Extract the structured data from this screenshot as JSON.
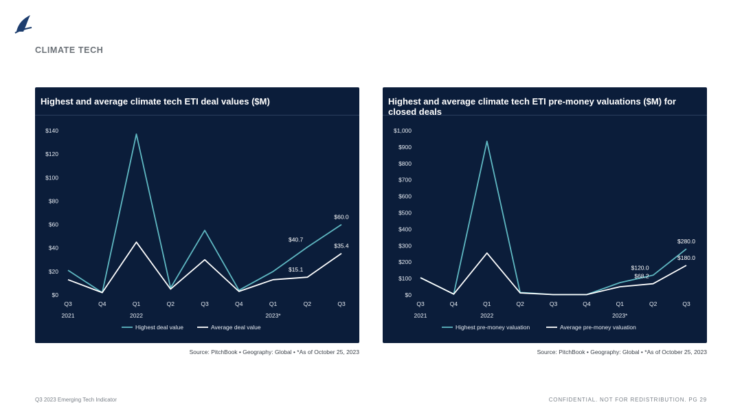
{
  "header": {
    "section_title": "CLIMATE TECH"
  },
  "colors": {
    "highest": "#5fb8c2",
    "average": "#ffffff",
    "panel_bg": "#0b1d3a",
    "axis_text": "#e6ebf2"
  },
  "chart_data": [
    {
      "type": "line",
      "title": "Highest and average climate tech ETI deal values ($M)",
      "categories": [
        "Q3",
        "Q4",
        "Q1",
        "Q2",
        "Q3",
        "Q4",
        "Q1",
        "Q2",
        "Q3"
      ],
      "year_labels": [
        "2021",
        "",
        "2022",
        "",
        "",
        "",
        "2023*",
        "",
        ""
      ],
      "ylim": [
        0,
        140
      ],
      "yticks": [
        0,
        20,
        40,
        60,
        80,
        100,
        120,
        140
      ],
      "ytick_labels": [
        "$0",
        "$20",
        "$40",
        "$60",
        "$80",
        "$100",
        "$120",
        "$140"
      ],
      "series": [
        {
          "name": "Highest deal value",
          "values": [
            21,
            2,
            137,
            6,
            55,
            4,
            20,
            40.7,
            60.0
          ]
        },
        {
          "name": "Average deal value",
          "values": [
            13,
            2,
            45,
            5,
            30,
            3,
            13,
            15.1,
            35.4
          ]
        }
      ],
      "annotations": [
        {
          "series": 0,
          "index": 7,
          "text": "$40.7"
        },
        {
          "series": 0,
          "index": 8,
          "text": "$60.0"
        },
        {
          "series": 1,
          "index": 7,
          "text": "$15.1"
        },
        {
          "series": 1,
          "index": 8,
          "text": "$35.4"
        }
      ],
      "legend": "bottom"
    },
    {
      "type": "line",
      "title": "Highest and average climate tech ETI pre-money valuations ($M) for closed deals",
      "categories": [
        "Q3",
        "Q4",
        "Q1",
        "Q2",
        "Q3",
        "Q4",
        "Q1",
        "Q2",
        "Q3"
      ],
      "year_labels": [
        "2021",
        "",
        "2022",
        "",
        "",
        "",
        "2023*",
        "",
        ""
      ],
      "ylim": [
        0,
        1000
      ],
      "yticks": [
        0,
        100,
        200,
        300,
        400,
        500,
        600,
        700,
        800,
        900,
        1000
      ],
      "ytick_labels": [
        "$0",
        "$100",
        "$200",
        "$300",
        "$400",
        "$500",
        "$600",
        "$700",
        "$800",
        "$900",
        "$1,000"
      ],
      "series": [
        {
          "name": "Highest pre-money valuation",
          "values": [
            105,
            5,
            935,
            15,
            2,
            2,
            75,
            120.0,
            280.0
          ]
        },
        {
          "name": "Average pre-money valuation",
          "values": [
            105,
            5,
            255,
            12,
            2,
            2,
            50,
            68.2,
            180.0
          ]
        }
      ],
      "annotations": [
        {
          "series": 0,
          "index": 7,
          "text": "$120.0"
        },
        {
          "series": 0,
          "index": 8,
          "text": "$280.0"
        },
        {
          "series": 1,
          "index": 7,
          "text": "$68.2"
        },
        {
          "series": 1,
          "index": 8,
          "text": "$180.0"
        }
      ],
      "legend": "bottom"
    }
  ],
  "sources": [
    "Source: PitchBook  •  Geography: Global  •  *As of October 25, 2023",
    "Source: PitchBook  •  Geography: Global  •  *As of October 25, 2023"
  ],
  "footer": {
    "left": "Q3 2023 Emerging Tech Indicator",
    "right": "CONFIDENTIAL. NOT FOR REDISTRIBUTION.  PG 29"
  }
}
